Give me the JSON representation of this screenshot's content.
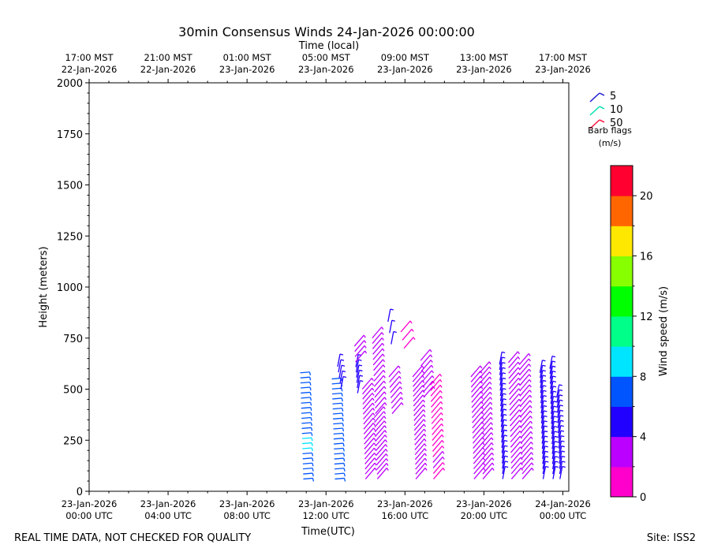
{
  "chart_data": {
    "type": "scatter",
    "title": "30min Consensus Winds 24-Jan-2026 00:00:00",
    "top_axis_label": "Time (local)",
    "top_ticks": [
      {
        "hour": 0,
        "line1": "17:00 MST",
        "line2": "22-Jan-2026"
      },
      {
        "hour": 4,
        "line1": "21:00 MST",
        "line2": "22-Jan-2026"
      },
      {
        "hour": 8,
        "line1": "01:00 MST",
        "line2": "23-Jan-2026"
      },
      {
        "hour": 12,
        "line1": "05:00 MST",
        "line2": "23-Jan-2026"
      },
      {
        "hour": 16,
        "line1": "09:00 MST",
        "line2": "23-Jan-2026"
      },
      {
        "hour": 20,
        "line1": "13:00 MST",
        "line2": "23-Jan-2026"
      },
      {
        "hour": 24,
        "line1": "17:00 MST",
        "line2": "23-Jan-2026"
      }
    ],
    "xlabel": "Time(UTC)",
    "x_ticks": [
      {
        "hour": 0,
        "line1": "23-Jan-2026",
        "line2": "00:00 UTC"
      },
      {
        "hour": 4,
        "line1": "23-Jan-2026",
        "line2": "04:00 UTC"
      },
      {
        "hour": 8,
        "line1": "23-Jan-2026",
        "line2": "08:00 UTC"
      },
      {
        "hour": 12,
        "line1": "23-Jan-2026",
        "line2": "12:00 UTC"
      },
      {
        "hour": 16,
        "line1": "23-Jan-2026",
        "line2": "16:00 UTC"
      },
      {
        "hour": 20,
        "line1": "23-Jan-2026",
        "line2": "20:00 UTC"
      },
      {
        "hour": 24,
        "line1": "24-Jan-2026",
        "line2": "00:00 UTC"
      }
    ],
    "xlim": [
      0,
      24.3
    ],
    "ylabel": "Height (meters)",
    "ylim": [
      0,
      2000
    ],
    "y_ticks": [
      0,
      250,
      500,
      750,
      1000,
      1250,
      1500,
      1750,
      2000
    ],
    "legend": {
      "placement": "top-right",
      "entries": [
        {
          "label": "5",
          "color": "#1f1fd0"
        },
        {
          "label": "10",
          "color": "#00e0b0"
        },
        {
          "label": "50",
          "color": "#ff1040"
        }
      ],
      "caption_line1": "Barb flags",
      "caption_line2": "(m/s)"
    },
    "colorbar": {
      "label": "Wind speed (m/s)",
      "min": 0,
      "max": 22,
      "ticks": [
        0,
        4,
        8,
        12,
        16,
        20
      ],
      "colors": [
        "#ff00cc",
        "#bb00ff",
        "#2200ff",
        "#0055ff",
        "#00e5ff",
        "#00ff88",
        "#00ff00",
        "#88ff00",
        "#ffe800",
        "#ff6600",
        "#ff0030"
      ]
    },
    "profiles": [
      {
        "hour": 10.85,
        "top": 580,
        "speeds": [
          6.5,
          6.5,
          6.5,
          6.5,
          6.5,
          7.5,
          8.5,
          8.5,
          8.5,
          7.5,
          6.5,
          6.5,
          6.5,
          6.5,
          6.5,
          6.5,
          6.5,
          6.5,
          6.5,
          6.5,
          6.5,
          6.5
        ]
      },
      {
        "hour": 12.45,
        "top": 550,
        "speeds": [
          6.5,
          6.5,
          6.5,
          6.5,
          6.5,
          6.5,
          6.5,
          6.5,
          6.5,
          6.5,
          6.5,
          6.5,
          6.5,
          6.5,
          6.5,
          6.5,
          6.5,
          6.5,
          6.5,
          6.5,
          6.5
        ]
      },
      {
        "hour": 12.75,
        "top": 610,
        "bottom": 500,
        "speeds": [
          5.2,
          5.2,
          5.2,
          5.2,
          5.2
        ]
      },
      {
        "hour": 13.6,
        "top": 710,
        "bottom": 480,
        "speeds": [
          4.8,
          4.8,
          4.5,
          4.3,
          4.3,
          4.1,
          3.8,
          3.8,
          3.5,
          3.5
        ]
      },
      {
        "hour": 14.0,
        "top": 500,
        "speeds": [
          3.5,
          3.5,
          3.5,
          3.5,
          3.5,
          3.5,
          3.5,
          3.5,
          3.5,
          3.5,
          3.5,
          3.5,
          3.5,
          3.5,
          3.5,
          3.5,
          3.5,
          3.5,
          3.5
        ]
      },
      {
        "hour": 14.5,
        "top": 750,
        "bottom": 380,
        "speeds": [
          3.5,
          3.5,
          3.5,
          3.5,
          3.5,
          3.5,
          3.5,
          3.5,
          3.5,
          3.5,
          3.5,
          3.5,
          3.5,
          3.5,
          3.5
        ]
      },
      {
        "hour": 14.6,
        "top": 360,
        "speeds": [
          3.5,
          3.5,
          3.5,
          3.5,
          3.5,
          3.5,
          3.5,
          3.5,
          3.5,
          3.5,
          3.5,
          3.5,
          3.5,
          3.5
        ]
      },
      {
        "hour": 15.3,
        "top": 830,
        "bottom": 720,
        "speeds": [
          4.8,
          4.8,
          4.8
        ]
      },
      {
        "hour": 15.35,
        "top": 560,
        "bottom": 380,
        "speeds": [
          3.5,
          3.5,
          3.5,
          3.5,
          3.5,
          3.5,
          3.5,
          3.5
        ]
      },
      {
        "hour": 15.95,
        "top": 780,
        "bottom": 700,
        "speeds": [
          1.5,
          1.5,
          1.5
        ]
      },
      {
        "hour": 16.55,
        "top": 560,
        "speeds": [
          3.5,
          3.5,
          3.5,
          3.5,
          3.5,
          3.5,
          3.5,
          3.5,
          3.5,
          3.5,
          3.5,
          3.5,
          3.5,
          3.5,
          3.5,
          3.5,
          3.5,
          3.5,
          3.5,
          3.5,
          3.5,
          3.5
        ]
      },
      {
        "hour": 16.95,
        "top": 640,
        "bottom": 460,
        "speeds": [
          3.3,
          3.3,
          3.3,
          3.3,
          3.3,
          3.3,
          3.3,
          3.3
        ]
      },
      {
        "hour": 17.45,
        "top": 520,
        "speeds": [
          1.5,
          1.5,
          2.5,
          3.0,
          1.5,
          1.5,
          1.5,
          1.5,
          1.5,
          1.5,
          1.5,
          1.5,
          1.5,
          1.5,
          1.5,
          1.5,
          1.5,
          1.5
        ]
      },
      {
        "hour": 19.5,
        "top": 560,
        "speeds": [
          3.5,
          3.5,
          3.5,
          3.5,
          3.5,
          3.5,
          3.5,
          3.5,
          3.5,
          3.5,
          3.5,
          3.5,
          3.5,
          3.5,
          3.5,
          3.5,
          3.5,
          3.5,
          3.5,
          3.5,
          3.5
        ]
      },
      {
        "hour": 19.95,
        "top": 580,
        "speeds": [
          3.5,
          3.5,
          3.5,
          3.5,
          3.5,
          3.5,
          3.5,
          3.5,
          3.5,
          3.5,
          3.5,
          3.5,
          3.5,
          3.5,
          3.5,
          3.5,
          3.5,
          3.5,
          3.5,
          3.5,
          3.5,
          3.5
        ]
      },
      {
        "hour": 20.95,
        "top": 620,
        "speeds": [
          4.5,
          4.5,
          4.5,
          4.5,
          4.5,
          4.5,
          4.5,
          4.5,
          4.5,
          4.5,
          4.5,
          4.5,
          4.5,
          4.5,
          4.5,
          4.5,
          4.5,
          4.5,
          4.5,
          4.5,
          4.5,
          4.5,
          4.5
        ]
      },
      {
        "hour": 21.4,
        "top": 630,
        "speeds": [
          3.8,
          3.8,
          3.8,
          3.8,
          3.8,
          3.8,
          3.8,
          3.8,
          3.8,
          3.8,
          3.8,
          3.8,
          3.8,
          3.8,
          3.8,
          3.8,
          3.8,
          3.8,
          3.8,
          3.8,
          3.8,
          3.8,
          3.8
        ]
      },
      {
        "hour": 21.95,
        "top": 620,
        "speeds": [
          3.5,
          3.5,
          3.5,
          3.5,
          3.5,
          3.5,
          3.5,
          3.5,
          3.5,
          3.5,
          3.5,
          3.5,
          3.5,
          3.5,
          3.5,
          3.5,
          3.5,
          3.5,
          3.5,
          3.5,
          3.5,
          3.5,
          3.5
        ]
      },
      {
        "hour": 23.0,
        "top": 580,
        "speeds": [
          4.5,
          4.5,
          4.5,
          4.5,
          4.5,
          4.5,
          4.5,
          4.5,
          4.5,
          4.5,
          4.5,
          4.5,
          4.5,
          4.5,
          4.5,
          4.5,
          4.5,
          4.5,
          4.5,
          4.5,
          4.5,
          4.5
        ]
      },
      {
        "hour": 23.5,
        "top": 600,
        "speeds": [
          4.5,
          4.5,
          4.5,
          4.5,
          4.5,
          4.5,
          4.5,
          4.5,
          4.5,
          4.5,
          4.5,
          4.5,
          4.5,
          4.5,
          4.5,
          4.5,
          4.5,
          4.5,
          4.5,
          4.5,
          4.5,
          4.5,
          4.5
        ]
      },
      {
        "hour": 23.85,
        "top": 460,
        "speeds": [
          4.5,
          4.5,
          4.5,
          4.5,
          4.5,
          4.5,
          4.5,
          4.5,
          4.5,
          4.5,
          4.5,
          4.5,
          4.5,
          4.5,
          4.5,
          4.5,
          4.5
        ]
      }
    ]
  },
  "footer": {
    "left": "REAL TIME DATA, NOT CHECKED FOR QUALITY",
    "right": "Site: ISS2"
  }
}
